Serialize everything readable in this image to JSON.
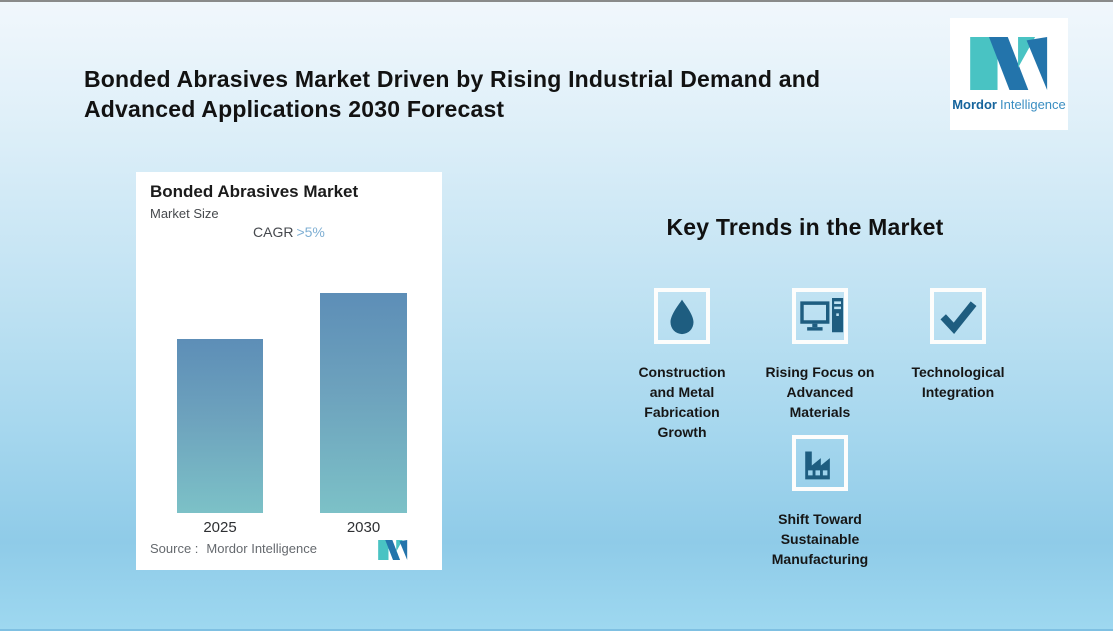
{
  "header": {
    "title_line1": "Bonded Abrasives Market Driven by Rising Industrial Demand and",
    "title_line2": "Advanced Applications 2030 Forecast"
  },
  "brand": {
    "name_bold": "Mordor",
    "name_light": "Intelligence"
  },
  "chart_card": {
    "title": "Bonded Abrasives Market",
    "subtitle": "Market Size",
    "cagr_label": "CAGR",
    "cagr_value": ">5%",
    "source_label": "Source :",
    "source_value": "Mordor Intelligence"
  },
  "chart_data": {
    "type": "bar",
    "title": "Bonded Abrasives Market",
    "subtitle": "Market Size",
    "annotation": "CAGR >5%",
    "categories": [
      "2025",
      "2030"
    ],
    "values": [
      0.79,
      1.0
    ],
    "value_scale": "relative bar height (no numeric axis shown)",
    "xlabel": "",
    "ylabel": "",
    "grid": false,
    "legend": false,
    "bar_color_top": "#5d8eb7",
    "bar_color_bottom": "#7cc1c7",
    "source": "Mordor Intelligence"
  },
  "trends": {
    "heading": "Key Trends in the Market",
    "items": [
      {
        "icon": "droplet-icon",
        "label": "Construction and Metal Fabrication Growth"
      },
      {
        "icon": "computer-icon",
        "label": "Rising Focus on Advanced Materials"
      },
      {
        "icon": "checkmark-icon",
        "label": "Technological Integration"
      },
      {
        "icon": "factory-icon",
        "label": "Shift Toward Sustainable Manufacturing"
      }
    ]
  },
  "colors": {
    "icon_blue": "#1e5d80",
    "icon_box_border": "#fdfdfc",
    "logo_teal": "#49c3c3",
    "logo_blue": "#2374ab",
    "cagr_value_blue": "#7fafd3",
    "background_top": "#f1f7fc",
    "background_bottom": "#9ed8f0"
  }
}
